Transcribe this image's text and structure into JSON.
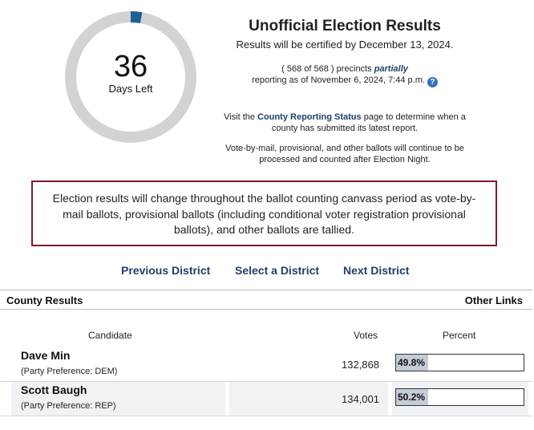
{
  "countdown": {
    "number": "36",
    "label": "Days Left",
    "progress_fraction": 0.028
  },
  "header": {
    "title": "Unofficial Election Results",
    "certify": "Results will be certified by December 13, 2024.",
    "precincts_prefix": "( 568 of 568 ) precincts",
    "precincts_partially": "partially",
    "precincts_suffix": "reporting as of November 6, 2024, 7:44 p.m.",
    "help_glyph": "?",
    "help_icon": "help-circle-icon"
  },
  "visit": {
    "prefix": "Visit the",
    "link": "County Reporting Status",
    "suffix": "page to determine when a county has submitted its latest report."
  },
  "vbm_note": "Vote-by-mail, provisional, and other ballots will continue to be processed and counted after Election Night.",
  "notice": "Election results will change throughout the ballot counting canvass period as vote-by-mail ballots, provisional ballots (including conditional voter registration provisional ballots), and other ballots are tallied.",
  "district_nav": {
    "previous": "Previous District",
    "select": "Select a District",
    "next": "Next District"
  },
  "results": {
    "left_heading": "County Results",
    "right_link": "Other Links",
    "columns": {
      "candidate": "Candidate",
      "votes": "Votes",
      "percent": "Percent"
    },
    "candidates": [
      {
        "name": "Dave Min",
        "party": "(Party Preference: DEM)",
        "votes": "132,868",
        "percent": "49.8%",
        "percent_value": 49.8
      },
      {
        "name": "Scott Baugh",
        "party": "(Party Preference: REP)",
        "votes": "134,001",
        "percent": "50.2%",
        "percent_value": 50.2
      }
    ]
  },
  "colors": {
    "ring_track": "#d3d3d3",
    "ring_progress": "#1f5f9a",
    "link": "#1f3f6a",
    "notice_border": "#7d1d2a",
    "bar_fill": "#c4ccd8"
  }
}
